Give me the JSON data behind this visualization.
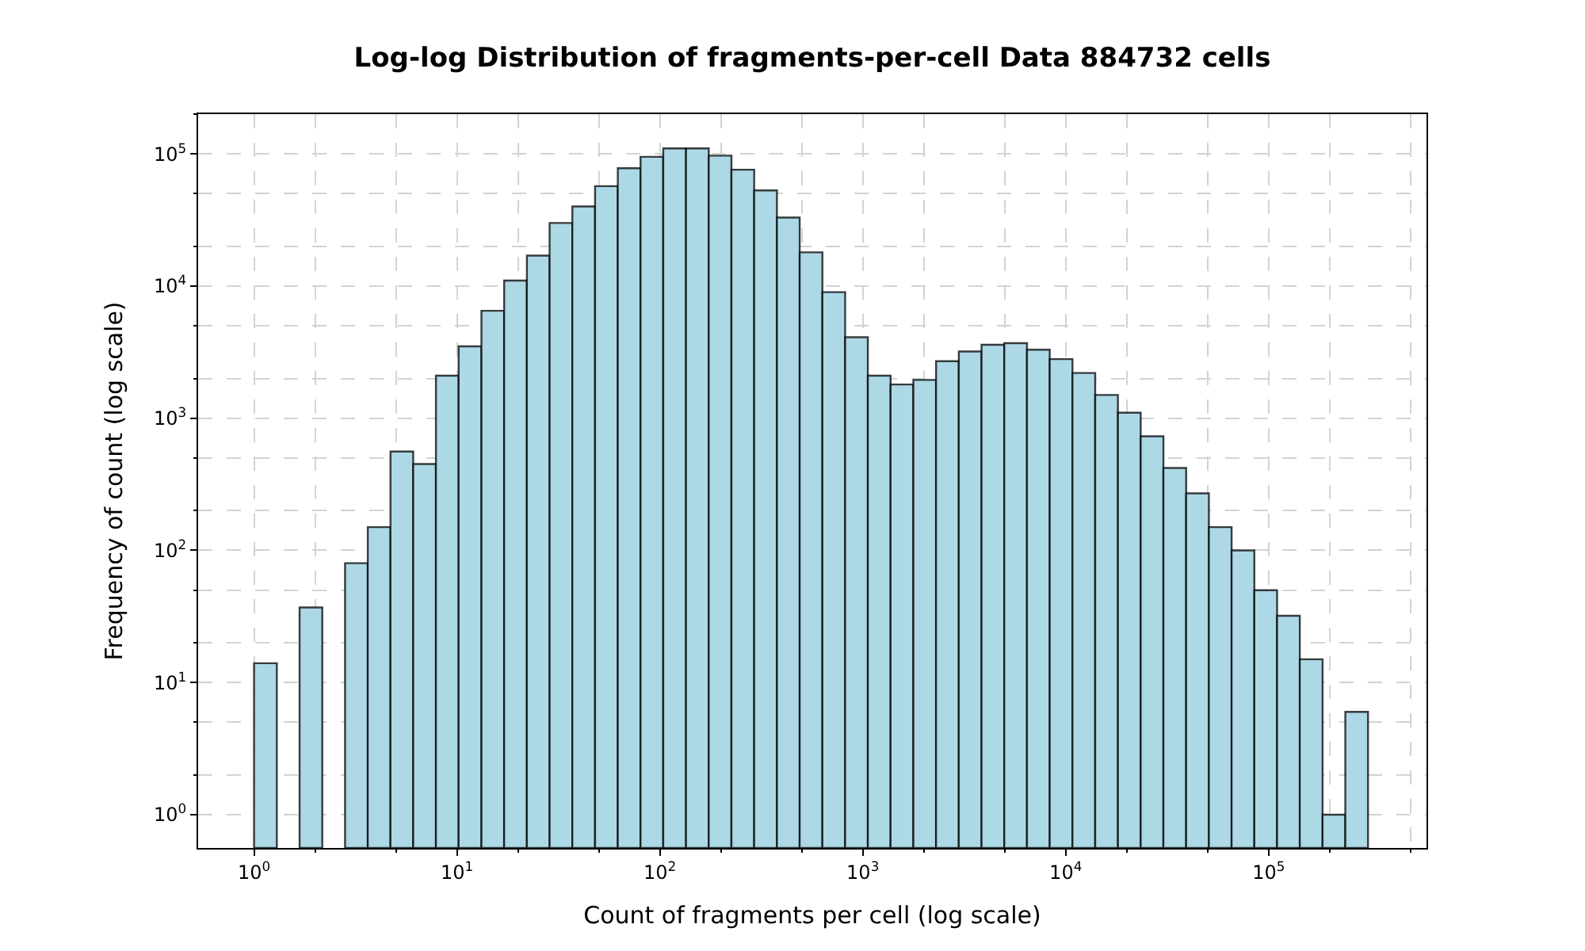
{
  "chart_data": {
    "type": "histogram",
    "title": "Log-log Distribution of fragments-per-cell Data 884732 cells",
    "xlabel": "Count of fragments per cell (log scale)",
    "ylabel": "Frequency of count (log scale)",
    "bins": [
      1,
      1.295,
      1.676,
      2.169,
      2.808,
      3.634,
      4.702,
      6.085,
      7.876,
      10.19,
      13.2,
      17.08,
      22.11,
      28.61,
      37.03,
      47.93,
      62.03,
      80.29,
      103.9,
      134.5,
      174.1,
      225.3,
      291.6,
      377.5,
      488.7,
      632.4,
      818.5,
      1059,
      1371,
      1775,
      2297,
      2973,
      3848,
      4981,
      6447,
      8343,
      10800,
      13980,
      18090,
      23420,
      30310,
      39230,
      50780,
      65720,
      85070,
      110100,
      142500,
      184500,
      238800,
      309000
    ],
    "values": [
      14,
      null,
      37,
      null,
      80,
      150,
      560,
      450,
      2100,
      3500,
      6500,
      11000,
      17000,
      30000,
      40000,
      57000,
      78000,
      95000,
      110000,
      110000,
      97000,
      76000,
      53000,
      33000,
      18000,
      9000,
      4100,
      2100,
      1800,
      1950,
      2700,
      3200,
      3600,
      3700,
      3300,
      2800,
      2200,
      1500,
      1100,
      730,
      420,
      270,
      150,
      100,
      50,
      32,
      15,
      1,
      6
    ],
    "color": "#add8e6",
    "log": "xy",
    "xlim": [
      0.53,
      600000
    ],
    "ylim": [
      0.56,
      200000
    ],
    "xticks": [
      {
        "value": 1,
        "label": "10$^{0}$"
      },
      {
        "value": 10,
        "label": "10$^{1}$"
      },
      {
        "value": 100,
        "label": "10$^{2}$"
      },
      {
        "value": 1000,
        "label": "10$^{3}$"
      },
      {
        "value": 10000,
        "label": "10$^{4}$"
      },
      {
        "value": 100000,
        "label": "10$^{5}$"
      }
    ],
    "yticks": [
      {
        "value": 1,
        "label": "10$^{0}$"
      },
      {
        "value": 10,
        "label": "10$^{1}$"
      },
      {
        "value": 100,
        "label": "10$^{2}$"
      },
      {
        "value": 1000,
        "label": "10$^{3}$"
      },
      {
        "value": 10000,
        "label": "10$^{4}$"
      },
      {
        "value": 100000,
        "label": "10$^{5}$"
      }
    ],
    "grid": true
  }
}
